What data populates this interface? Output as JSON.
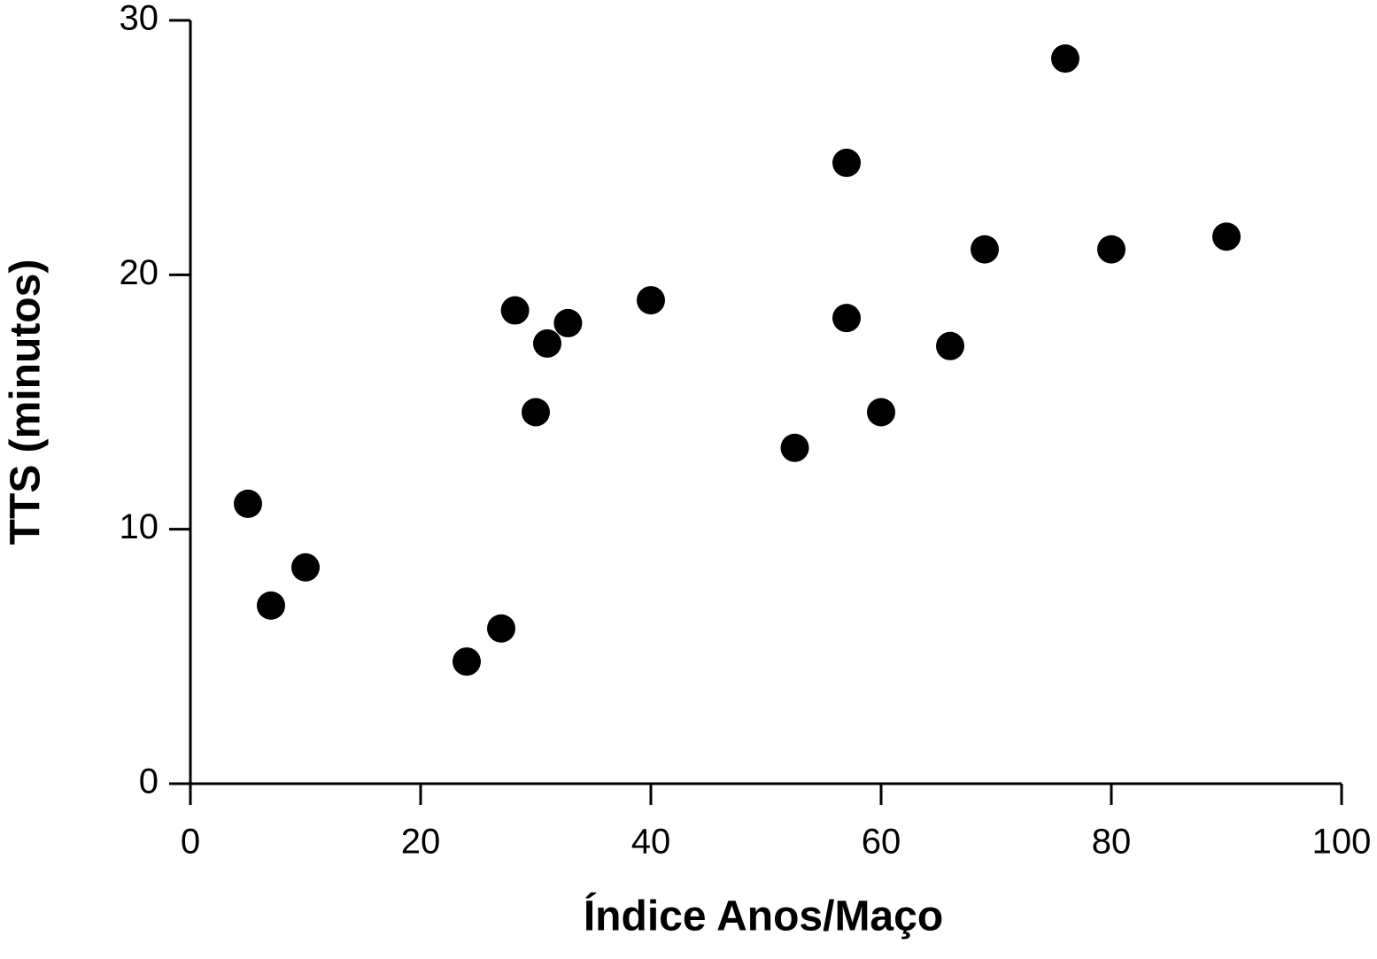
{
  "chart_data": {
    "type": "scatter",
    "xlabel": "Índice Anos/Maço",
    "ylabel": "TTS (minutos)",
    "x": [
      5,
      7,
      10,
      24,
      27,
      28.2,
      30,
      31,
      32.8,
      40,
      52.5,
      57,
      57,
      60,
      66,
      69,
      76,
      80,
      90
    ],
    "values": [
      11,
      7,
      8.5,
      4.8,
      6.1,
      18.6,
      14.6,
      17.3,
      18.1,
      19.0,
      13.2,
      24.4,
      18.3,
      14.6,
      17.2,
      21.0,
      28.5,
      21.0,
      21.5
    ],
    "color": "#000000",
    "xlim": [
      0,
      100
    ],
    "xticks": [
      0,
      20,
      40,
      60,
      80,
      100
    ],
    "ylim": [
      0,
      30
    ],
    "yticks": [
      0,
      10,
      20,
      30
    ],
    "grid": false
  }
}
